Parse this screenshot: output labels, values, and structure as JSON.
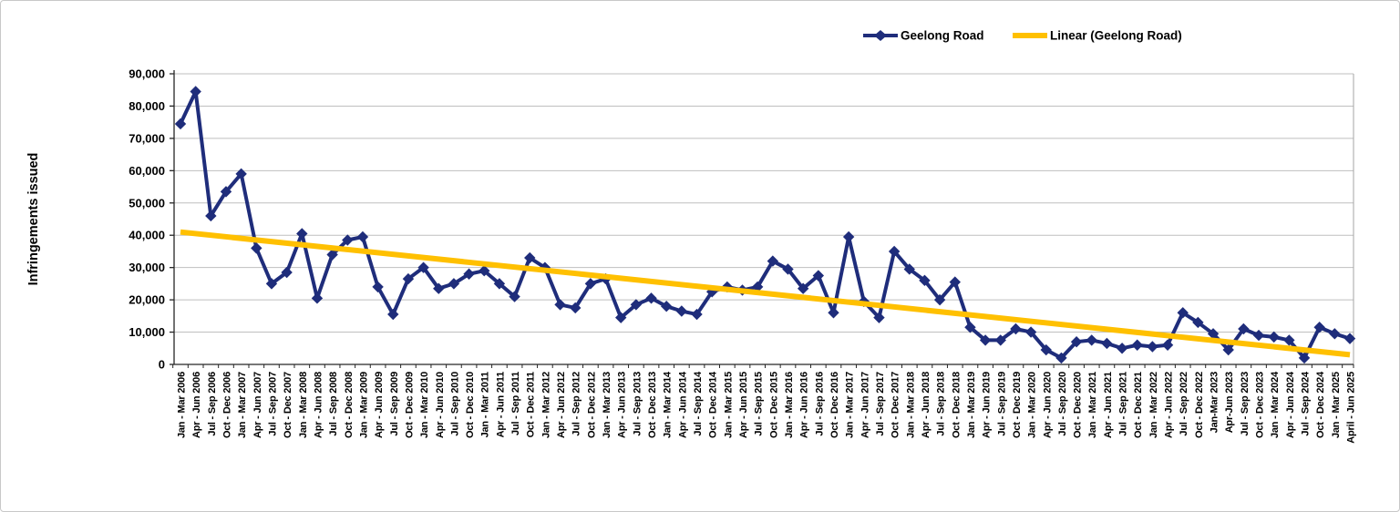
{
  "figure": {
    "type_label": "line-chart-figure"
  },
  "legend": {
    "series1_label": "Geelong Road",
    "series2_label": "Linear (Geelong Road)"
  },
  "y_axis": {
    "title": "Infringements issued",
    "tick_labels": [
      "0",
      "10,000",
      "20,000",
      "30,000",
      "40,000",
      "50,000",
      "60,000",
      "70,000",
      "80,000",
      "90,000"
    ]
  },
  "colors": {
    "series": "#1F2D7B",
    "trend": "#FFC000",
    "gridline": "#BFBFBF",
    "axis": "#262626",
    "right_border": "#A6A6A6",
    "text": "#000000"
  },
  "chart_data": {
    "type": "line",
    "title": "",
    "xlabel": "",
    "ylabel": "Infringements issued",
    "ylim": [
      0,
      90000
    ],
    "y_tick_step": 10000,
    "grid": true,
    "legend_position": "top",
    "marker": "diamond",
    "categories": [
      "Jan - Mar 2006",
      "Apr - Jun 2006",
      "Jul - Sep 2006",
      "Oct - Dec 2006",
      "Jan - Mar 2007",
      "Apr - Jun 2007",
      "Jul - Sep 2007",
      "Oct - Dec 2007",
      "Jan - Mar 2008",
      "Apr - Jun 2008",
      "Jul - Sep 2008",
      "Oct - Dec 2008",
      "Jan - Mar 2009",
      "Apr - Jun 2009",
      "Jul - Sep 2009",
      "Oct - Dec 2009",
      "Jan - Mar 2010",
      "Apr - Jun 2010",
      "Jul - Sep 2010",
      "Oct - Dec 2010",
      "Jan - Mar 2011",
      "Apr - Jun 2011",
      "Jul - Sep 2011",
      "Oct - Dec 2011",
      "Jan - Mar 2012",
      "Apr - Jun 2012",
      "Jul - Sep 2012",
      "Oct - Dec 2012",
      "Jan - Mar 2013",
      "Apr - Jun 2013",
      "Jul - Sep 2013",
      "Oct - Dec 2013",
      "Jan - Mar 2014",
      "Apr - Jun 2014",
      "Jul - Sep 2014",
      "Oct - Dec 2014",
      "Jan - Mar 2015",
      "Apr - Jun 2015",
      "Jul - Sep 2015",
      "Oct - Dec 2015",
      "Jan - Mar 2016",
      "Apr - Jun 2016",
      "Jul - Sep 2016",
      "Oct - Dec 2016",
      "Jan - Mar 2017",
      "Apr - Jun 2017",
      "Jul - Sep 2017",
      "Oct - Dec 2017",
      "Jan - Mar 2018",
      "Apr - Jun 2018",
      "Jul - Sep 2018",
      "Oct - Dec 2018",
      "Jan - Mar 2019",
      "Apr - Jun 2019",
      "Jul - Sep 2019",
      "Oct - Dec 2019",
      "Jan - Mar 2020",
      "Apr - Jun 2020",
      "Jul - Sep 2020",
      "Oct - Dec 2020",
      "Jan - Mar 2021",
      "Apr - Jun 2021",
      "Jul - Sep 2021",
      "Oct - Dec 2021",
      "Jan - Mar 2022",
      "Apr - Jun 2022",
      "Jul - Sep 2022",
      "Oct - Dec 2022",
      "Jan-Mar 2023",
      "Apr-Jun 2023",
      "Jul - Sep 2023",
      "Oct - Dec 2023",
      "Jan - Mar 2024",
      "Apr - Jun 2024",
      "Jul - Sep 2024",
      "Oct - Dec 2024",
      "Jan - Mar 2025",
      "April - Jun 2025"
    ],
    "series": [
      {
        "name": "Geelong Road",
        "color": "#1F2D7B",
        "values": [
          74500,
          84500,
          46000,
          53500,
          59000,
          36000,
          25000,
          28500,
          40500,
          20500,
          34000,
          38500,
          39500,
          24000,
          15500,
          26500,
          30000,
          23500,
          25000,
          28000,
          29000,
          25000,
          21000,
          33000,
          30000,
          18500,
          17500,
          25000,
          26500,
          14500,
          18500,
          20500,
          18000,
          16500,
          15500,
          22500,
          24000,
          23000,
          24000,
          32000,
          29500,
          23500,
          27500,
          16000,
          39500,
          19500,
          14500,
          35000,
          29500,
          26000,
          20000,
          25500,
          11500,
          7500,
          7500,
          11000,
          10000,
          4500,
          2000,
          7000,
          7500,
          6500,
          5000,
          6000,
          5500,
          6000,
          16000,
          13000,
          9500,
          4500,
          11000,
          9000,
          8500,
          7500,
          2000,
          11500,
          9500,
          8000
        ]
      },
      {
        "name": "Linear (Geelong Road)",
        "type": "linear_trendline",
        "color": "#FFC000",
        "start_value": 41000,
        "end_value": 3000
      }
    ]
  }
}
